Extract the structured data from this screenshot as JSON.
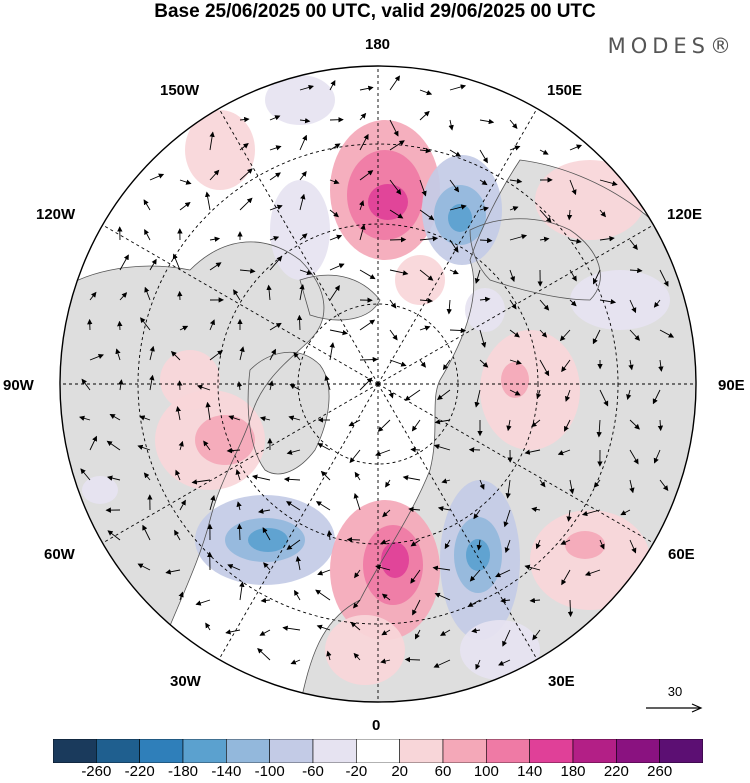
{
  "title": "Base 25/06/2025 00 UTC, valid 29/06/2025 00 UTC",
  "brand": "MODES®",
  "longitude_labels": {
    "lon_180": "180",
    "lon_150e": "150E",
    "lon_120e": "120E",
    "lon_90e": "90E",
    "lon_60e": "60E",
    "lon_30e": "30E",
    "lon_0": "0",
    "lon_30w": "30W",
    "lon_60w": "60W",
    "lon_90w": "90W",
    "lon_120w": "120W",
    "lon_150w": "150W"
  },
  "reference_vector": "30",
  "colorbar": {
    "labels": [
      "-260",
      "-220",
      "-180",
      "-140",
      "-100",
      "-60",
      "-20",
      "20",
      "60",
      "100",
      "140",
      "180",
      "220",
      "260"
    ],
    "colors": [
      "#1a3a5c",
      "#1f5f8f",
      "#2f7fba",
      "#5ba1cf",
      "#93b8dc",
      "#c3cbe6",
      "#e6e3f1",
      "#ffffff",
      "#f8d6d9",
      "#f4a8b8",
      "#ef7aa5",
      "#e04098",
      "#b31f86",
      "#8a1280",
      "#5c0f73"
    ]
  },
  "map_colors": {
    "land": "#dedede",
    "ocean": "#ffffff",
    "outline": "#000000",
    "coast": "#555555"
  }
}
